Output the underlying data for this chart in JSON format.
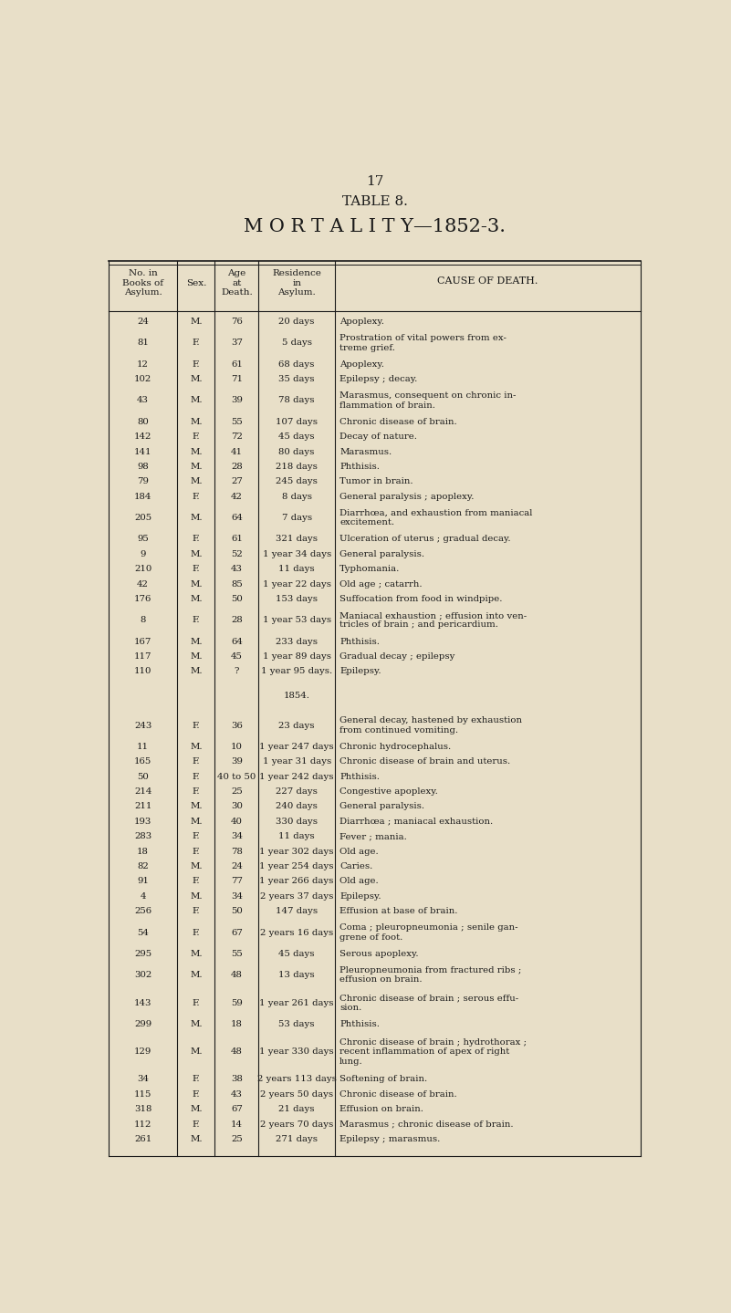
{
  "page_number": "17",
  "table_title": "TABLE 8.",
  "subtitle": "M O R T A L I T Y—1852-3.",
  "bg_color": "#e8dfc8",
  "text_color": "#1a1a1a",
  "col_headers": [
    "No. in\nBooks of\nAsylum.",
    "Sex.",
    "Age\nat\nDeath.",
    "Residence\nin\nAsylum.",
    "CAUSE OF DEATH."
  ],
  "rows": [
    [
      "24",
      "M.",
      "76",
      "20 days",
      "Apoplexy."
    ],
    [
      "81",
      "F.",
      "37",
      "5 days",
      "Prostration of vital powers from ex-\ntreme grief."
    ],
    [
      "12",
      "F.",
      "61",
      "68 days",
      "Apoplexy."
    ],
    [
      "102",
      "M.",
      "71",
      "35 days",
      "Epilepsy ; decay."
    ],
    [
      "43",
      "M.",
      "39",
      "78 days",
      "Marasmus, consequent on chronic in-\nflammation of brain."
    ],
    [
      "80",
      "M.",
      "55",
      "107 days",
      "Chronic disease of brain."
    ],
    [
      "142",
      "F.",
      "72",
      "45 days",
      "Decay of nature."
    ],
    [
      "141",
      "M.",
      "41",
      "80 days",
      "Marasmus."
    ],
    [
      "98",
      "M.",
      "28",
      "218 days",
      "Phthisis."
    ],
    [
      "79",
      "M.",
      "27",
      "245 days",
      "Tumor in brain."
    ],
    [
      "184",
      "F.",
      "42",
      "8 days",
      "General paralysis ; apoplexy."
    ],
    [
      "205",
      "M.",
      "64",
      "7 days",
      "Diarrhœa, and exhaustion from maniacal\nexcitement."
    ],
    [
      "95",
      "F.",
      "61",
      "321 days",
      "Ulceration of uterus ; gradual decay."
    ],
    [
      "9",
      "M.",
      "52",
      "1 year 34 days",
      "General paralysis."
    ],
    [
      "210",
      "F.",
      "43",
      "11 days",
      "Typhomania."
    ],
    [
      "42",
      "M.",
      "85",
      "1 year 22 days",
      "Old age ; catarrh."
    ],
    [
      "176",
      "M.",
      "50",
      "153 days",
      "Suffocation from food in windpipe."
    ],
    [
      "8",
      "F.",
      "28",
      "1 year 53 days",
      "Maniacal exhaustion ; effusion into ven-\ntricles of brain ; and pericardium."
    ],
    [
      "167",
      "M.",
      "64",
      "233 days",
      "Phthisis."
    ],
    [
      "117",
      "M.",
      "45",
      "1 year 89 days",
      "Gradual decay ; epilepsy"
    ],
    [
      "110",
      "M.",
      "?",
      "1 year 95 days.",
      "Epilepsy."
    ],
    [
      "SEP",
      "SEP",
      "SEP",
      "1854.",
      "SEP"
    ],
    [
      "243",
      "F.",
      "36",
      "23 days",
      "General decay, hastened by exhaustion\nfrom continued vomiting."
    ],
    [
      "11",
      "M.",
      "10",
      "1 year 247 days",
      "Chronic hydrocephalus."
    ],
    [
      "165",
      "F.",
      "39",
      "1 year 31 days",
      "Chronic disease of brain and uterus."
    ],
    [
      "50",
      "F.",
      "40 to 50",
      "1 year 242 days",
      "Phthisis."
    ],
    [
      "214",
      "F.",
      "25",
      "227 days",
      "Congestive apoplexy."
    ],
    [
      "211",
      "M.",
      "30",
      "240 days",
      "General paralysis."
    ],
    [
      "193",
      "M.",
      "40",
      "330 days",
      "Diarrhœa ; maniacal exhaustion."
    ],
    [
      "283",
      "F.",
      "34",
      "11 days",
      "Fever ; mania."
    ],
    [
      "18",
      "F.",
      "78",
      "1 year 302 days",
      "Old age."
    ],
    [
      "82",
      "M.",
      "24",
      "1 year 254 days",
      "Caries."
    ],
    [
      "91",
      "F.",
      "77",
      "1 year 266 days",
      "Old age."
    ],
    [
      "4",
      "M.",
      "34",
      "2 years 37 days",
      "Epilepsy."
    ],
    [
      "256",
      "F.",
      "50",
      "147 days",
      "Effusion at base of brain."
    ],
    [
      "54",
      "F.",
      "67",
      "2 years 16 days",
      "Coma ; pleuropneumonia ; senile gan-\ngrene of foot."
    ],
    [
      "295",
      "M.",
      "55",
      "45 days",
      "Serous apoplexy."
    ],
    [
      "302",
      "M.",
      "48",
      "13 days",
      "Pleuropneumonia from fractured ribs ;\neffusion on brain."
    ],
    [
      "143",
      "F.",
      "59",
      "1 year 261 days",
      "Chronic disease of brain ; serous effu-\nsion."
    ],
    [
      "299",
      "M.",
      "18",
      "53 days",
      "Phthisis."
    ],
    [
      "129",
      "M.",
      "48",
      "1 year 330 days",
      "Chronic disease of brain ; hydrothorax ;\nrecent inflammation of apex of right\nlung."
    ],
    [
      "34",
      "F.",
      "38",
      "2 years 113 days",
      "Softening of brain."
    ],
    [
      "115",
      "F.",
      "43",
      "2 years 50 days",
      "Chronic disease of brain."
    ],
    [
      "318",
      "M.",
      "67",
      "21 days",
      "Effusion on brain."
    ],
    [
      "112",
      "F.",
      "14",
      "2 years 70 days",
      "Marasmus ; chronic disease of brain."
    ],
    [
      "261",
      "M.",
      "25",
      "271 days",
      "Epilepsy ; marasmus."
    ]
  ]
}
